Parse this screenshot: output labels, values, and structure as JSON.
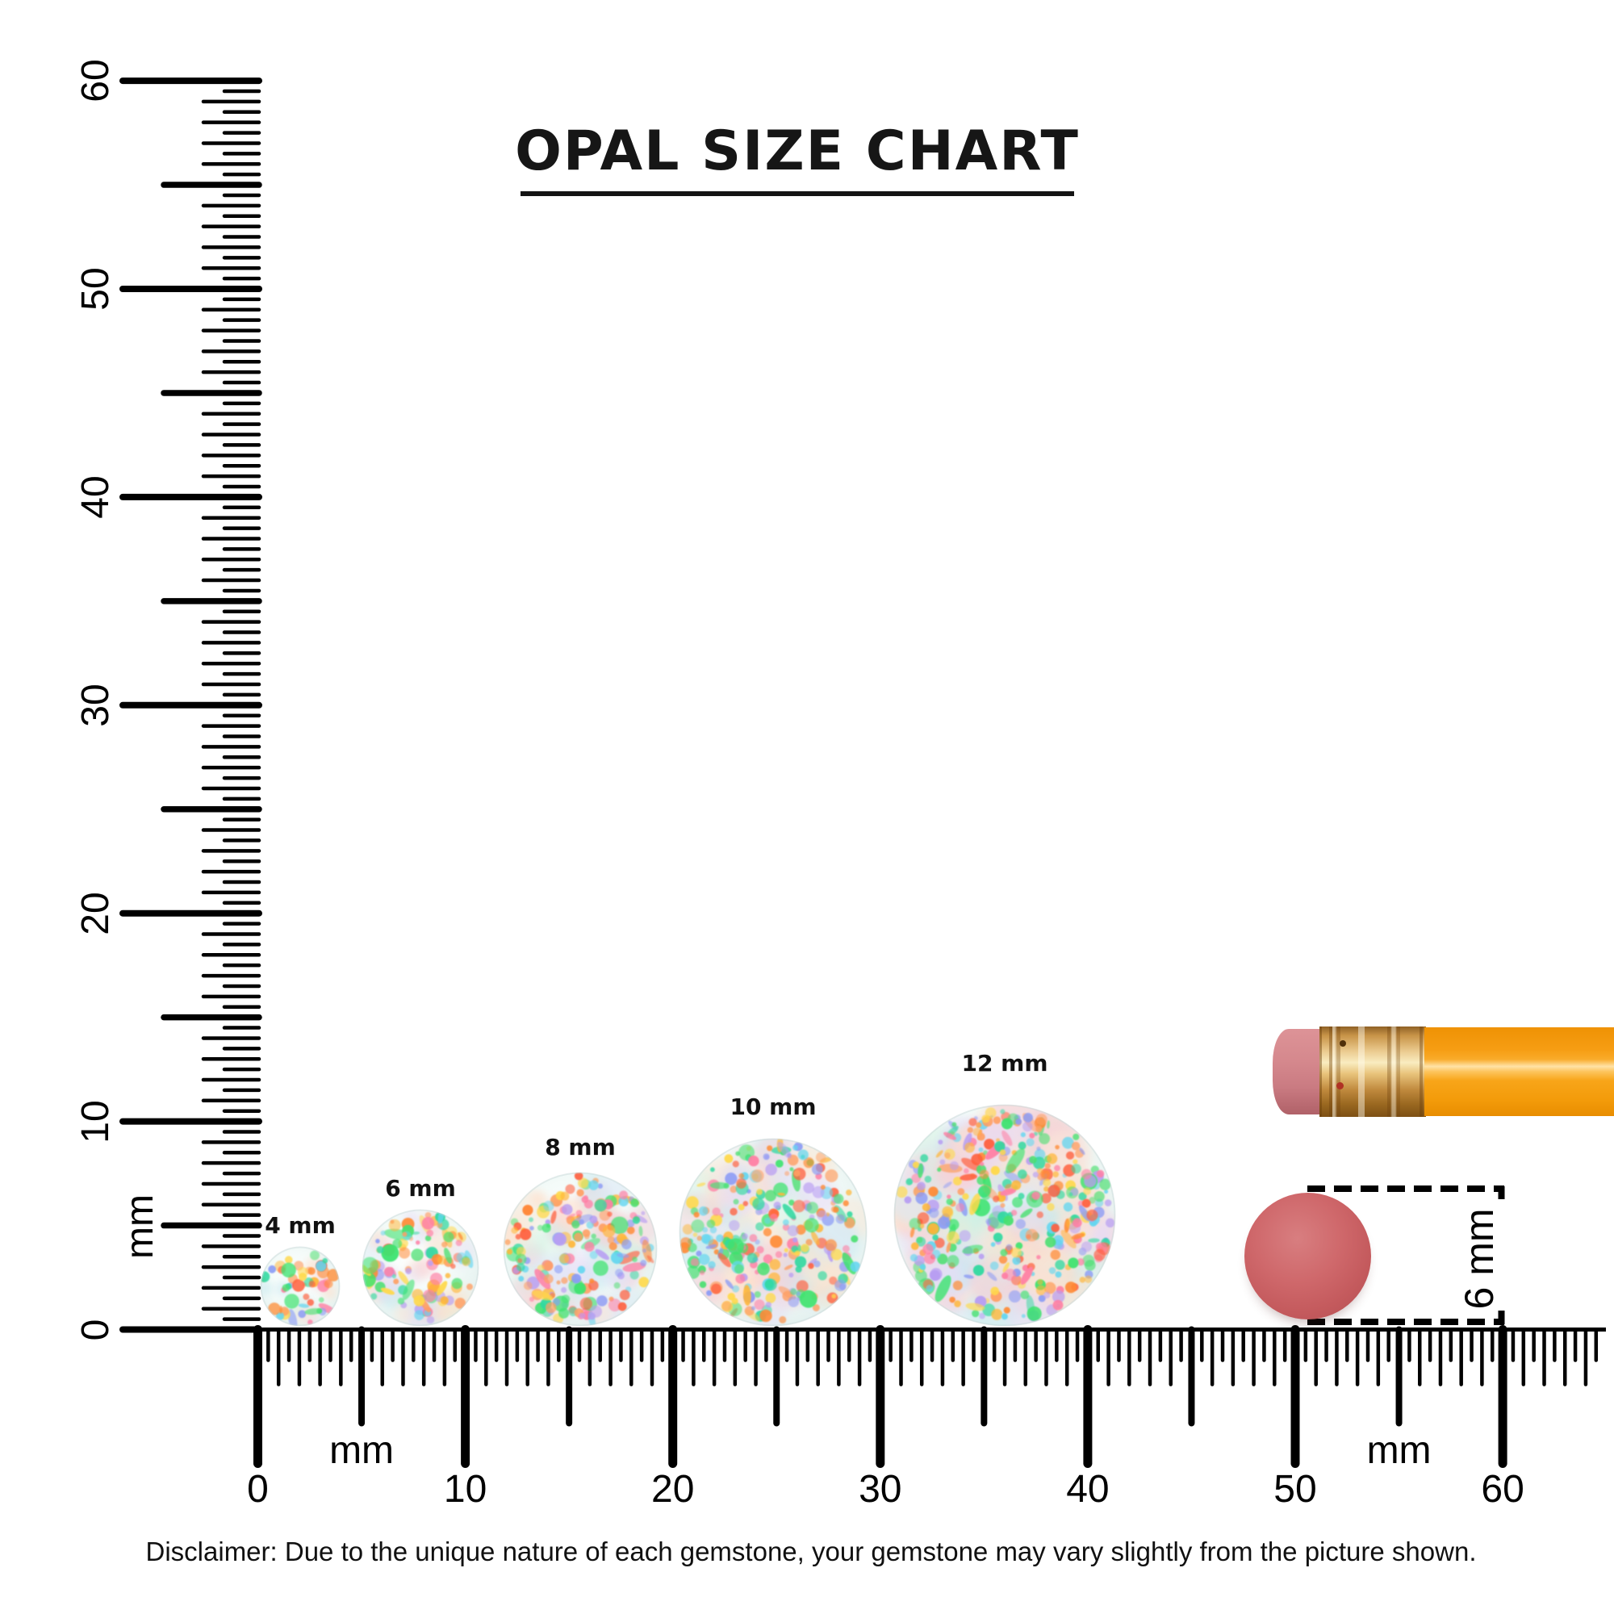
{
  "title": "OPAL SIZE CHART",
  "disclaimer": "Disclaimer: Due to the unique nature of each gemstone, your gemstone may vary slightly from the picture shown.",
  "vertical_ruler": {
    "unit": "mm",
    "min_mm": 0,
    "max_mm": 60,
    "tick_step_mm": 0.5,
    "label_every_mm": 10,
    "labels": [
      "0",
      "10",
      "20",
      "30",
      "40",
      "50",
      "60"
    ]
  },
  "horizontal_ruler": {
    "unit": "mm",
    "min_mm": 0,
    "max_mm": 64.5,
    "tick_step_mm": 0.5,
    "label_every_mm": 10,
    "labels": [
      "0",
      "10",
      "20",
      "30",
      "40",
      "50",
      "60"
    ]
  },
  "opals": [
    {
      "label": "4 mm",
      "size_mm": 4
    },
    {
      "label": "6 mm",
      "size_mm": 6
    },
    {
      "label": "8 mm",
      "size_mm": 8
    },
    {
      "label": "10 mm",
      "size_mm": 10
    },
    {
      "label": "12 mm",
      "size_mm": 12
    }
  ],
  "eraser_measure": {
    "label": "6 mm",
    "diameter_mm": 6
  },
  "colors": {
    "tick": "#000000",
    "pencil_body_orange": "#f79d10",
    "pencil_ferrule_gold": "#d9a55c",
    "pencil_eraser_pink": "#d5888d",
    "red_dot": "#c45a5d",
    "opal_pastels": [
      "#c4e9f0",
      "#e8ddf5",
      "#f7cfd8",
      "#ffdfc9",
      "#d3f2e2",
      "#dde9f7",
      "#f9e8d8"
    ],
    "opal_specks": [
      "#ff8a33",
      "#ff5f3d",
      "#ffb637",
      "#ffd94a",
      "#49e070",
      "#2fd9a0",
      "#8b9bf5",
      "#b79df2",
      "#ff7fa4",
      "#ff9f63",
      "#63d6f0"
    ]
  }
}
